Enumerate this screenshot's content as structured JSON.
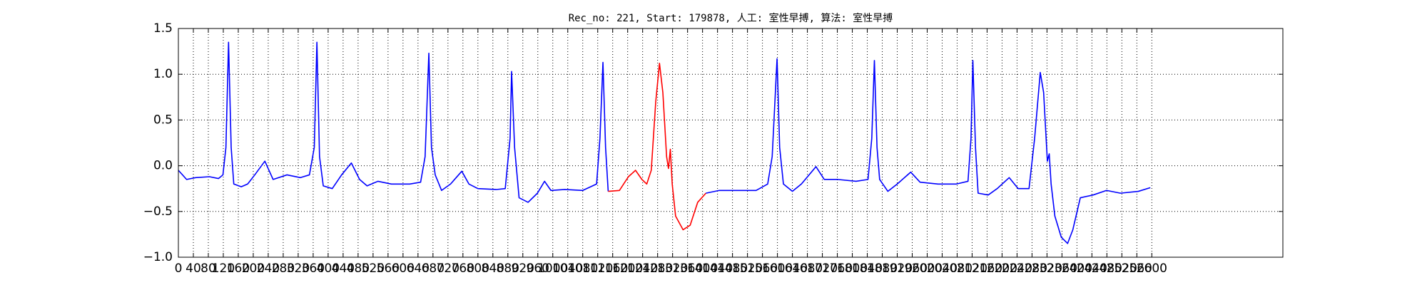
{
  "chart_data": {
    "type": "line",
    "title": "Rec_no: 221, Start: 179878, 人工: 室性早搏, 算法: 室性早搏",
    "xlim": [
      0,
      2950
    ],
    "ylim": [
      -1,
      1.5
    ],
    "xticks": [
      0,
      40,
      80,
      120,
      160,
      200,
      240,
      280,
      320,
      360,
      400,
      440,
      480,
      520,
      560,
      600,
      640,
      680,
      720,
      760,
      800,
      840,
      880,
      920,
      960,
      1000,
      1040,
      1080,
      1120,
      1160,
      1200,
      1240,
      1280,
      1320,
      1360,
      1400,
      1440,
      1480,
      1520,
      1560,
      1600,
      1640,
      1680,
      1720,
      1760,
      1800,
      1840,
      1880,
      1920,
      1960,
      2000,
      2040,
      2080,
      2120,
      2160,
      2200,
      2240,
      2280,
      2320,
      2360,
      2400,
      2440,
      2480,
      2520,
      2560,
      2600
    ],
    "yticks": [
      {
        "value": -1,
        "label": "−1.0"
      },
      {
        "value": -0.5,
        "label": "−0.5"
      },
      {
        "value": 0,
        "label": "0.0"
      },
      0.5,
      {
        "value": 1,
        "label": "1.0"
      },
      1.5
    ],
    "grid": true,
    "series": [
      {
        "color": "#0000ff",
        "x": [
          0,
          22,
          46,
          83,
          107,
          119,
          127,
          134,
          141,
          148,
          168,
          185,
          204,
          231,
          253,
          290,
          326,
          350,
          363,
          370,
          377,
          387,
          411,
          436,
          462,
          484,
          504,
          533,
          569,
          618,
          647,
          659,
          669,
          676,
          686,
          703,
          727,
          757,
          776,
          800,
          849,
          873,
          886,
          890,
          898,
          910,
          934,
          959,
          978,
          995,
          1032,
          1080,
          1117,
          1126,
          1134,
          1141,
          1148
        ],
        "values": [
          -0.05,
          -0.15,
          -0.13,
          -0.12,
          -0.14,
          -0.1,
          0.2,
          1.35,
          0.2,
          -0.2,
          -0.23,
          -0.2,
          -0.1,
          0.05,
          -0.15,
          -0.1,
          -0.13,
          -0.1,
          0.2,
          1.35,
          0.1,
          -0.22,
          -0.25,
          -0.1,
          0.03,
          -0.15,
          -0.22,
          -0.17,
          -0.2,
          -0.2,
          -0.18,
          0.1,
          1.23,
          0.2,
          -0.1,
          -0.27,
          -0.2,
          -0.06,
          -0.2,
          -0.25,
          -0.26,
          -0.25,
          0.3,
          1.03,
          0.2,
          -0.35,
          -0.4,
          -0.3,
          -0.17,
          -0.27,
          -0.26,
          -0.27,
          -0.2,
          0.3,
          1.13,
          0.2,
          -0.28
        ]
      },
      {
        "color": "#ff0000",
        "x": [
          1148,
          1178,
          1202,
          1221,
          1238,
          1251,
          1263,
          1275,
          1285,
          1294,
          1304,
          1309,
          1314,
          1319,
          1328,
          1348,
          1367,
          1387,
          1409
        ],
        "values": [
          -0.28,
          -0.27,
          -0.12,
          -0.05,
          -0.15,
          -0.2,
          -0.05,
          0.7,
          1.12,
          0.8,
          0.1,
          -0.03,
          0.18,
          -0.2,
          -0.55,
          -0.7,
          -0.65,
          -0.4,
          -0.3
        ]
      },
      {
        "color": "#0000ff",
        "x": [
          1409,
          1445,
          1494,
          1543,
          1574,
          1586,
          1599,
          1606,
          1616,
          1640,
          1664,
          1703,
          1725,
          1761,
          1810,
          1842,
          1852,
          1859,
          1866,
          1873,
          1895,
          1920,
          1956,
          1981,
          2029,
          2078,
          2109,
          2117,
          2122,
          2129,
          2136,
          2163,
          2187,
          2219,
          2243,
          2272,
          2287,
          2302,
          2311,
          2321,
          2326,
          2331,
          2341,
          2358,
          2375,
          2389,
          2409,
          2443,
          2479,
          2516,
          2564,
          2596
        ],
        "values": [
          -0.3,
          -0.27,
          -0.27,
          -0.27,
          -0.2,
          0.1,
          1.17,
          0.2,
          -0.2,
          -0.28,
          -0.2,
          -0.01,
          -0.15,
          -0.15,
          -0.17,
          -0.15,
          0.3,
          1.15,
          0.2,
          -0.15,
          -0.28,
          -0.2,
          -0.07,
          -0.18,
          -0.2,
          -0.2,
          -0.17,
          0.3,
          1.15,
          0.2,
          -0.3,
          -0.32,
          -0.25,
          -0.13,
          -0.25,
          -0.25,
          0.3,
          1.02,
          0.8,
          0.05,
          0.13,
          -0.2,
          -0.55,
          -0.78,
          -0.85,
          -0.7,
          -0.35,
          -0.32,
          -0.27,
          -0.3,
          -0.28,
          -0.24
        ]
      }
    ]
  }
}
